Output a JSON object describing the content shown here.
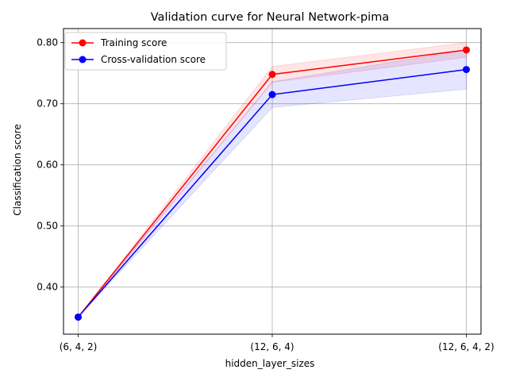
{
  "chart_data": {
    "type": "line",
    "title": "Validation curve for Neural Network-pima",
    "xlabel": "hidden_layer_sizes",
    "ylabel": "Classification score",
    "categories": [
      "(6, 4, 2)",
      "(12, 6, 4)",
      "(12, 6, 4, 2)"
    ],
    "ylim": [
      0.323,
      0.823
    ],
    "yticks": [
      0.4,
      0.5,
      0.6,
      0.7,
      0.8
    ],
    "ytick_labels": [
      "0.40",
      "0.50",
      "0.60",
      "0.70",
      "0.80"
    ],
    "grid": true,
    "legend_position": "top-left",
    "series": [
      {
        "name": "Training score",
        "color": "#ff0000",
        "values": [
          0.351,
          0.748,
          0.788
        ],
        "lower": [
          0.351,
          0.735,
          0.776
        ],
        "upper": [
          0.351,
          0.761,
          0.8
        ]
      },
      {
        "name": "Cross-validation score",
        "color": "#0000ff",
        "values": [
          0.351,
          0.715,
          0.756
        ],
        "lower": [
          0.351,
          0.694,
          0.724
        ],
        "upper": [
          0.351,
          0.736,
          0.788
        ]
      }
    ]
  }
}
